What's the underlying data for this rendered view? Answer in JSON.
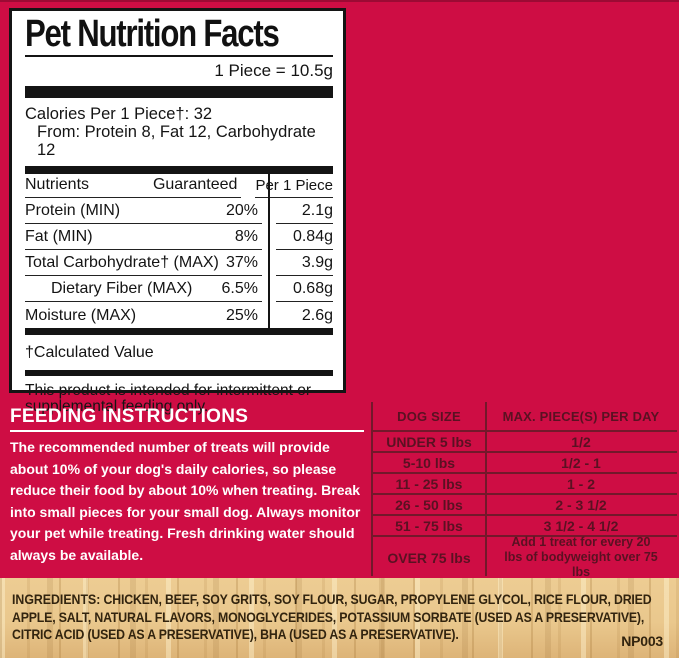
{
  "colors": {
    "red_bg": "#CE0D44",
    "red_edge": "#9C0A34",
    "panel_bg": "#FFFFFF",
    "ink": "#141414",
    "maroon_text": "#5A1122",
    "maroon_line": "#73182B",
    "white": "#FFFFFF",
    "wood_base": "#EAC88D",
    "ingredients_ink": "#32240F"
  },
  "nutrition_panel": {
    "title": "Pet Nutrition Facts",
    "serving": "1 Piece = 10.5g",
    "calories_line": "Calories Per 1 Piece†: 32",
    "calories_from": "From: Protein 8, Fat 12, Carbohydrate 12",
    "table": {
      "headers": [
        "Nutrients",
        "Guaranteed",
        "Per 1 Piece"
      ],
      "rows": [
        {
          "name": "Protein (MIN)",
          "guaranteed": "20%",
          "per_piece": "2.1g"
        },
        {
          "name": "Fat (MIN)",
          "guaranteed": "8%",
          "per_piece": "0.84g"
        },
        {
          "name": "Total Carbohydrate†  (MAX)",
          "guaranteed": "37%",
          "per_piece": "3.9g"
        },
        {
          "name": "Dietary Fiber (MAX)",
          "guaranteed": "6.5%",
          "per_piece": "0.68g"
        },
        {
          "name": "Moisture (MAX)",
          "guaranteed": "25%",
          "per_piece": "2.6g"
        }
      ]
    },
    "footnote": "†Calculated Value",
    "statement": "This product is intended for intermittent or supplemental feeding only."
  },
  "feeding_instructions": {
    "heading": "FEEDING INSTRUCTIONS",
    "body": "The recommended number of treats will provide about 10% of your dog's daily calories, so please reduce their food by about 10% when treating. Break into small pieces for your small dog. Always monitor your pet while treating. Fresh drinking water should always be available."
  },
  "dog_size_table": {
    "headers": [
      "DOG SIZE",
      "MAX. PIECE(S) PER DAY"
    ],
    "rows": [
      [
        "UNDER 5 lbs",
        "1/2"
      ],
      [
        "5-10 lbs",
        "1/2 - 1"
      ],
      [
        "11 - 25 lbs",
        "1 - 2"
      ],
      [
        "26 - 50 lbs",
        "2 - 3 1/2"
      ],
      [
        "51 - 75 lbs",
        "3 1/2 - 4 1/2"
      ],
      [
        "OVER 75 lbs",
        "Add 1 treat for every 20 lbs of bodyweight over 75 lbs"
      ]
    ]
  },
  "ingredients": {
    "label": "INGREDIENTS:",
    "text": "CHICKEN, BEEF, SOY GRITS, SOY FLOUR, SUGAR, PROPYLENE GLYCOL, RICE FLOUR, DRIED APPLE, SALT, NATURAL FLAVORS, MONOGLYCERIDES, POTASSIUM SORBATE (USED AS A PRESERVATIVE), CITRIC ACID (USED AS A PRESERVATIVE), BHA (USED AS A PRESERVATIVE).",
    "code": "NP003"
  }
}
